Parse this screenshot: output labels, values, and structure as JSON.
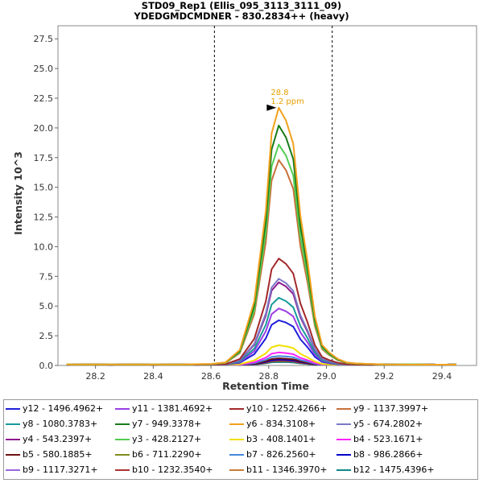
{
  "chart_data": {
    "type": "line",
    "title": "STD09_Rep1 (Ellis_095_3113_3111_09)",
    "subtitle": "YDEDGMDCMDNER - 830.2834++ (heavy)",
    "xlabel": "Retention Time",
    "ylabel": "Intensity 10^3",
    "xlim": [
      28.07,
      29.52
    ],
    "ylim": [
      0,
      28.6
    ],
    "xticks": [
      "28.2",
      "28.4",
      "28.6",
      "28.8",
      "29.0",
      "29.2",
      "29.4"
    ],
    "yticks": [
      "0.0",
      "2.5",
      "5.0",
      "7.5",
      "10.0",
      "12.5",
      "15.0",
      "17.5",
      "20.0",
      "22.5",
      "25.0",
      "27.5"
    ],
    "grid": false,
    "legend": "bottom",
    "boundaries": [
      28.612,
      29.02
    ],
    "peak_annotation": {
      "x": 28.835,
      "y": 21.7,
      "rt": "28.8",
      "ppm": "1.2 ppm"
    },
    "x": [
      28.1,
      28.15,
      28.2,
      28.25,
      28.3,
      28.35,
      28.4,
      28.45,
      28.5,
      28.55,
      28.6,
      28.65,
      28.7,
      28.75,
      28.79,
      28.81,
      28.835,
      28.86,
      28.885,
      28.91,
      28.935,
      28.96,
      28.985,
      29.01,
      29.04,
      29.07,
      29.1,
      29.15,
      29.2,
      29.3,
      29.4,
      29.45
    ],
    "series": [
      {
        "name": "y12 - 1496.4962+",
        "color": "#1f1fdc",
        "peak": 3.8
      },
      {
        "name": "y11 - 1381.4692+",
        "color": "#9b3ee6",
        "peak": 4.8
      },
      {
        "name": "y10 - 1252.4266+",
        "color": "#a2282a",
        "peak": 9.0
      },
      {
        "name": "y9 - 1137.3997+",
        "color": "#c8703a",
        "peak": 17.3
      },
      {
        "name": "y8 - 1080.3783+",
        "color": "#16999a",
        "peak": 5.7
      },
      {
        "name": "y7 - 949.3378+",
        "color": "#1a7c1a",
        "peak": 20.2
      },
      {
        "name": "y6 - 834.3108+",
        "color": "#f2a11e",
        "peak": 21.7
      },
      {
        "name": "y5 - 674.2802+",
        "color": "#7a7ac8",
        "peak": 7.3
      },
      {
        "name": "y4 - 543.2397+",
        "color": "#8e1a8e",
        "peak": 7.0
      },
      {
        "name": "y3 - 428.2127+",
        "color": "#52cc52",
        "peak": 18.6
      },
      {
        "name": "b3 - 408.1401+",
        "color": "#f0e000",
        "peak": 1.7
      },
      {
        "name": "b4 - 523.1671+",
        "color": "#ff22ff",
        "peak": 1.1
      },
      {
        "name": "b5 - 580.1885+",
        "color": "#6e1010",
        "peak": 0.6
      },
      {
        "name": "b6 - 711.2290+",
        "color": "#7f8c1a",
        "peak": 0.4
      },
      {
        "name": "b7 - 826.2560+",
        "color": "#4488dd",
        "peak": 0.8
      },
      {
        "name": "b8 - 986.2866+",
        "color": "#0000cc",
        "peak": 0.5
      },
      {
        "name": "b9 - 1117.3271+",
        "color": "#9966dd",
        "peak": 0.3
      },
      {
        "name": "b10 - 1232.3540+",
        "color": "#aa3333",
        "peak": 0.4
      },
      {
        "name": "b11 - 1346.3970+",
        "color": "#c87d38",
        "peak": 0.3
      },
      {
        "name": "b12 - 1475.4396+",
        "color": "#118888",
        "peak": 0.3
      }
    ],
    "profile": [
      0.004,
      0.004,
      0.004,
      0.004,
      0.004,
      0.004,
      0.004,
      0.004,
      0.004,
      0.005,
      0.006,
      0.012,
      0.06,
      0.25,
      0.6,
      0.9,
      1.0,
      0.95,
      0.86,
      0.58,
      0.4,
      0.19,
      0.08,
      0.05,
      0.025,
      0.012,
      0.008,
      0.006,
      0.004,
      0.003,
      0.003,
      0.003
    ]
  }
}
